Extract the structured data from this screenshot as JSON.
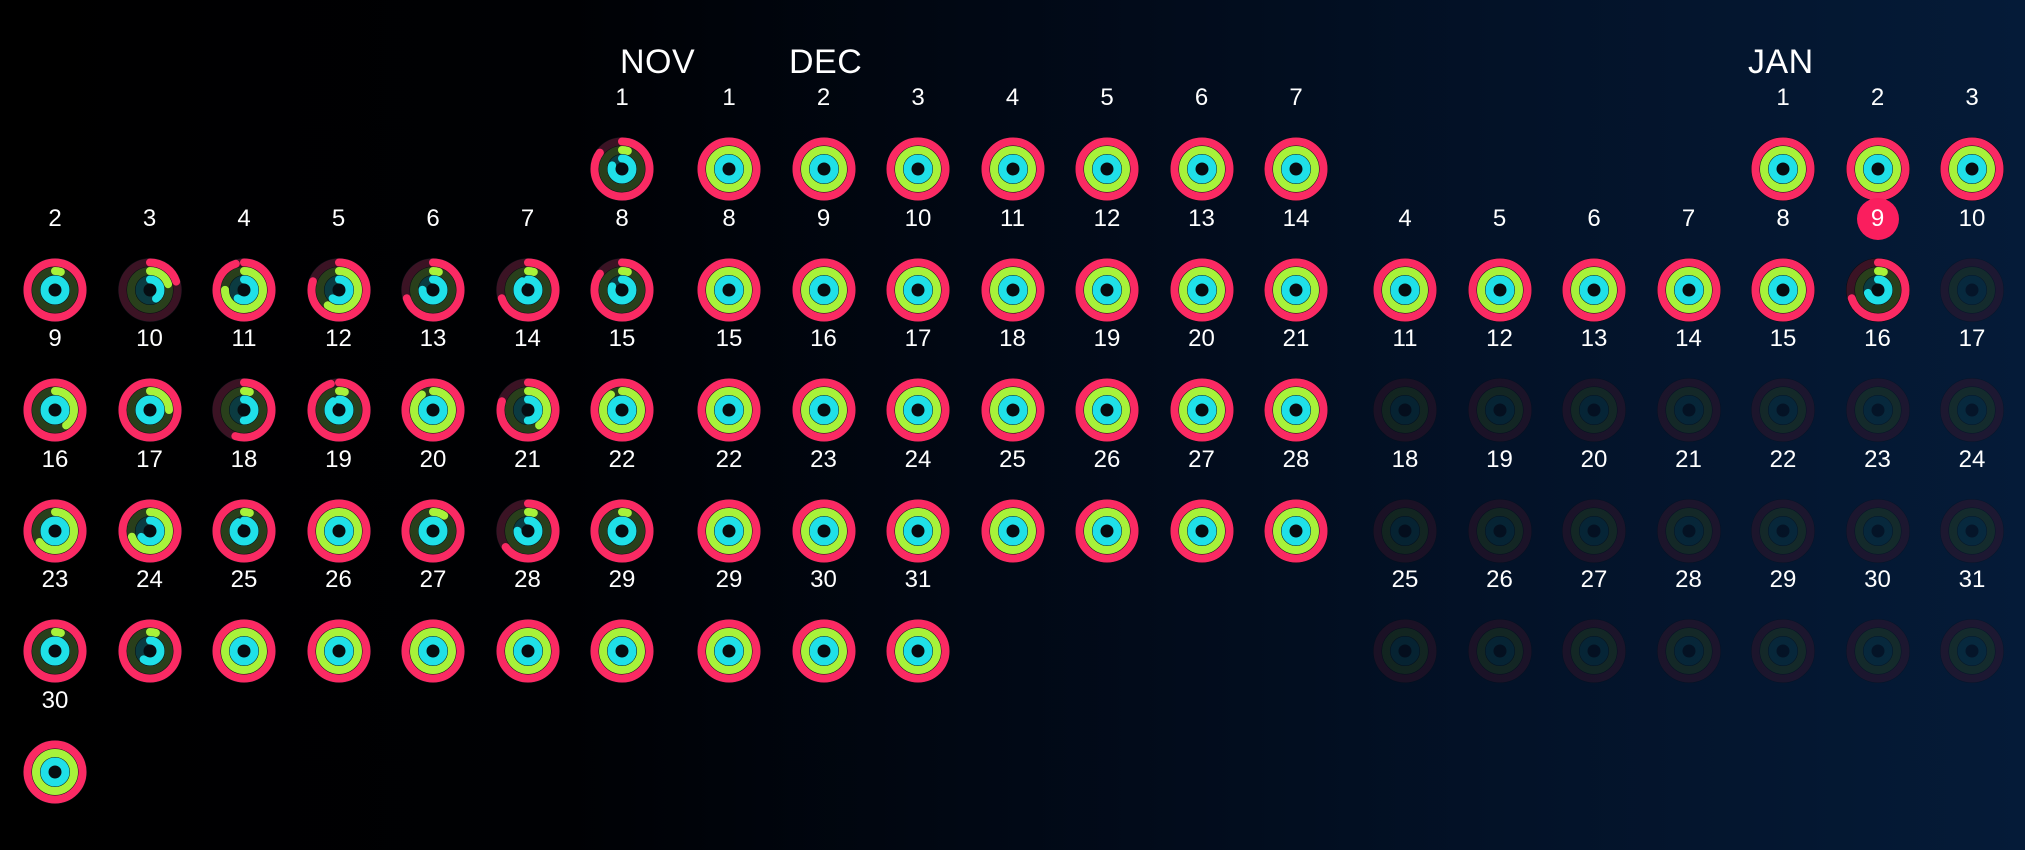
{
  "colors": {
    "move": "#fa2a63",
    "exercise": "#a7f23a",
    "stand": "#1fe0e8",
    "today_badge": "#fa1e5e"
  },
  "months": [
    {
      "name": "NOV",
      "first_weekday": 6,
      "days_in_month": 30,
      "days": [
        {
          "move": 0.85,
          "exercise": 0.05,
          "stand": 0.8
        },
        {
          "move": 1.0,
          "exercise": 0.05,
          "stand": 1.0
        },
        {
          "move": 0.2,
          "exercise": 0.2,
          "stand": 0.4
        },
        {
          "move": 0.95,
          "exercise": 0.75,
          "stand": 0.6
        },
        {
          "move": 0.8,
          "exercise": 0.6,
          "stand": 0.6
        },
        {
          "move": 0.7,
          "exercise": 0.05,
          "stand": 0.75
        },
        {
          "move": 0.7,
          "exercise": 0.05,
          "stand": 0.9
        },
        {
          "move": 0.85,
          "exercise": 0.05,
          "stand": 0.8
        },
        {
          "move": 1.0,
          "exercise": 0.4,
          "stand": 1.0
        },
        {
          "move": 1.0,
          "exercise": 0.25,
          "stand": 1.0
        },
        {
          "move": 0.55,
          "exercise": 0.05,
          "stand": 0.5
        },
        {
          "move": 0.95,
          "exercise": 0.05,
          "stand": 0.9
        },
        {
          "move": 1.0,
          "exercise": 0.9,
          "stand": 1.0
        },
        {
          "move": 0.8,
          "exercise": 0.4,
          "stand": 0.5
        },
        {
          "move": 1.0,
          "exercise": 0.9,
          "stand": 1.0
        },
        {
          "move": 1.0,
          "exercise": 0.65,
          "stand": 1.0
        },
        {
          "move": 1.0,
          "exercise": 0.7,
          "stand": 0.65
        },
        {
          "move": 1.0,
          "exercise": 0.05,
          "stand": 0.9
        },
        {
          "move": 1.0,
          "exercise": 1.0,
          "stand": 1.0
        },
        {
          "move": 1.0,
          "exercise": 0.1,
          "stand": 1.0
        },
        {
          "move": 0.65,
          "exercise": 0.05,
          "stand": 0.75
        },
        {
          "move": 1.0,
          "exercise": 0.05,
          "stand": 1.0
        },
        {
          "move": 1.0,
          "exercise": 0.05,
          "stand": 1.0
        },
        {
          "move": 1.0,
          "exercise": 0.05,
          "stand": 0.6
        },
        {
          "move": 1.0,
          "exercise": 1.0,
          "stand": 1.0
        },
        {
          "move": 1.0,
          "exercise": 1.0,
          "stand": 1.0
        },
        {
          "move": 1.0,
          "exercise": 1.0,
          "stand": 1.0
        },
        {
          "move": 1.0,
          "exercise": 1.0,
          "stand": 1.0
        },
        {
          "move": 1.0,
          "exercise": 1.0,
          "stand": 1.0
        },
        {
          "move": 1.0,
          "exercise": 1.0,
          "stand": 1.0
        }
      ]
    },
    {
      "name": "DEC",
      "first_weekday": 0,
      "days_in_month": 31,
      "days": [
        {
          "move": 1,
          "exercise": 1,
          "stand": 1
        },
        {
          "move": 1,
          "exercise": 1,
          "stand": 1
        },
        {
          "move": 1,
          "exercise": 1,
          "stand": 1
        },
        {
          "move": 1,
          "exercise": 1,
          "stand": 1
        },
        {
          "move": 1,
          "exercise": 1,
          "stand": 1
        },
        {
          "move": 1,
          "exercise": 1,
          "stand": 1
        },
        {
          "move": 1,
          "exercise": 1,
          "stand": 1
        },
        {
          "move": 1,
          "exercise": 1,
          "stand": 1
        },
        {
          "move": 1,
          "exercise": 1,
          "stand": 1
        },
        {
          "move": 1,
          "exercise": 1,
          "stand": 1
        },
        {
          "move": 1,
          "exercise": 1,
          "stand": 1
        },
        {
          "move": 1,
          "exercise": 1,
          "stand": 1
        },
        {
          "move": 1,
          "exercise": 1,
          "stand": 1
        },
        {
          "move": 1,
          "exercise": 1,
          "stand": 1
        },
        {
          "move": 1,
          "exercise": 1,
          "stand": 1
        },
        {
          "move": 1,
          "exercise": 1,
          "stand": 1
        },
        {
          "move": 1,
          "exercise": 1,
          "stand": 1
        },
        {
          "move": 1,
          "exercise": 1,
          "stand": 1
        },
        {
          "move": 1,
          "exercise": 1,
          "stand": 1
        },
        {
          "move": 1,
          "exercise": 1,
          "stand": 1
        },
        {
          "move": 1,
          "exercise": 1,
          "stand": 1
        },
        {
          "move": 1,
          "exercise": 1,
          "stand": 1
        },
        {
          "move": 1,
          "exercise": 1,
          "stand": 1
        },
        {
          "move": 1,
          "exercise": 1,
          "stand": 1
        },
        {
          "move": 1,
          "exercise": 1,
          "stand": 1
        },
        {
          "move": 1,
          "exercise": 1,
          "stand": 1
        },
        {
          "move": 1,
          "exercise": 1,
          "stand": 1
        },
        {
          "move": 1,
          "exercise": 1,
          "stand": 1
        },
        {
          "move": 1,
          "exercise": 1,
          "stand": 1
        },
        {
          "move": 1,
          "exercise": 1,
          "stand": 1
        },
        {
          "move": 1,
          "exercise": 1,
          "stand": 1
        }
      ]
    },
    {
      "name": "JAN",
      "first_weekday": 4,
      "days_in_month": 31,
      "today": 9,
      "days": [
        {
          "move": 1,
          "exercise": 1,
          "stand": 1
        },
        {
          "move": 1,
          "exercise": 1,
          "stand": 1
        },
        {
          "move": 1,
          "exercise": 1,
          "stand": 1
        },
        {
          "move": 1,
          "exercise": 1,
          "stand": 1
        },
        {
          "move": 1,
          "exercise": 1,
          "stand": 1
        },
        {
          "move": 1,
          "exercise": 1,
          "stand": 1
        },
        {
          "move": 1,
          "exercise": 1,
          "stand": 1
        },
        {
          "move": 1,
          "exercise": 1,
          "stand": 1
        },
        {
          "move": 0.7,
          "exercise": 0.05,
          "stand": 0.7
        },
        {
          "move": 0,
          "exercise": 0,
          "stand": 0
        },
        {
          "move": 0,
          "exercise": 0,
          "stand": 0
        },
        {
          "move": 0,
          "exercise": 0,
          "stand": 0
        },
        {
          "move": 0,
          "exercise": 0,
          "stand": 0
        },
        {
          "move": 0,
          "exercise": 0,
          "stand": 0
        },
        {
          "move": 0,
          "exercise": 0,
          "stand": 0
        },
        {
          "move": 0,
          "exercise": 0,
          "stand": 0
        },
        {
          "move": 0,
          "exercise": 0,
          "stand": 0
        },
        {
          "move": 0,
          "exercise": 0,
          "stand": 0
        },
        {
          "move": 0,
          "exercise": 0,
          "stand": 0
        },
        {
          "move": 0,
          "exercise": 0,
          "stand": 0
        },
        {
          "move": 0,
          "exercise": 0,
          "stand": 0
        },
        {
          "move": 0,
          "exercise": 0,
          "stand": 0
        },
        {
          "move": 0,
          "exercise": 0,
          "stand": 0
        },
        {
          "move": 0,
          "exercise": 0,
          "stand": 0
        },
        {
          "move": 0,
          "exercise": 0,
          "stand": 0
        },
        {
          "move": 0,
          "exercise": 0,
          "stand": 0
        },
        {
          "move": 0,
          "exercise": 0,
          "stand": 0
        },
        {
          "move": 0,
          "exercise": 0,
          "stand": 0
        },
        {
          "move": 0,
          "exercise": 0,
          "stand": 0
        },
        {
          "move": 0,
          "exercise": 0,
          "stand": 0
        },
        {
          "move": 0,
          "exercise": 0,
          "stand": 0
        }
      ]
    }
  ]
}
